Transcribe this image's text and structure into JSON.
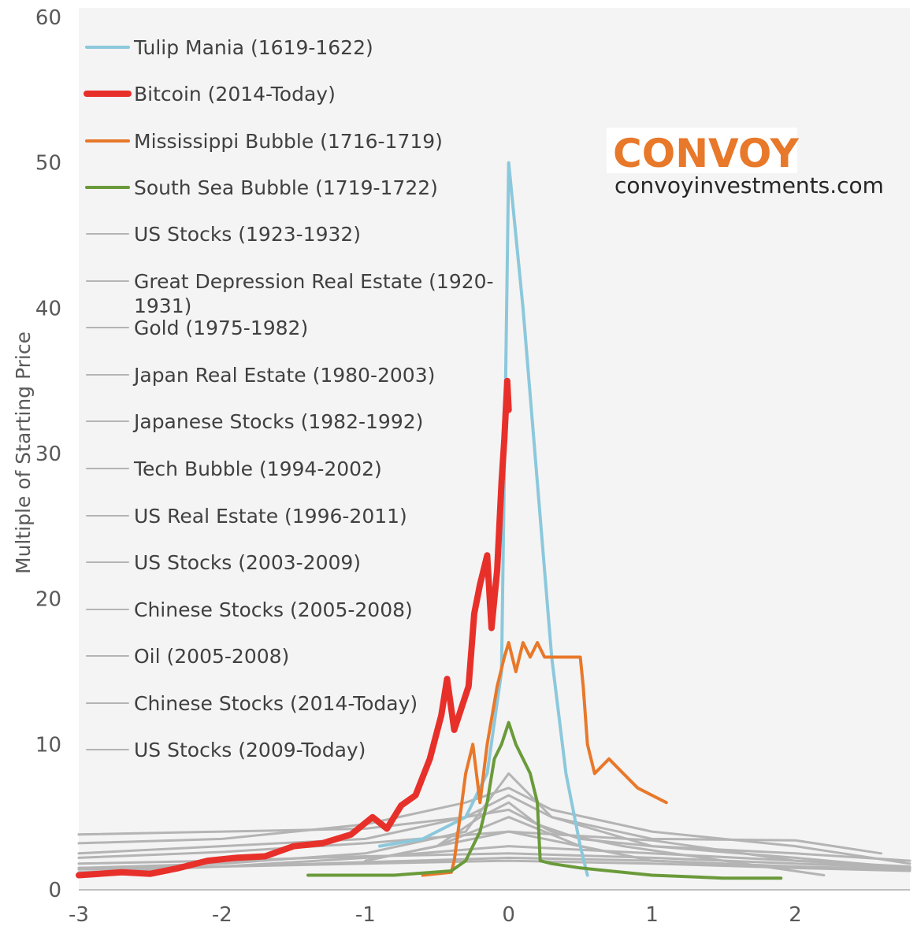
{
  "chart_data": {
    "type": "line",
    "ylabel": "Multiple of Starting Price",
    "xlim": [
      -3,
      2.8
    ],
    "ylim": [
      0,
      60
    ],
    "x_ticks": [
      "-3",
      "-2",
      "-1",
      "0",
      "1",
      "2"
    ],
    "y_ticks": [
      "0",
      "10",
      "20",
      "30",
      "40",
      "50",
      "60"
    ],
    "grid": false,
    "legend_position": "top-left",
    "series": [
      {
        "name": "Tulip Mania (1619-1622)",
        "color": "#8cc8dc",
        "width": 4,
        "x": [
          -0.9,
          -0.6,
          -0.3,
          -0.15,
          -0.05,
          0.0,
          0.1,
          0.2,
          0.3,
          0.4,
          0.5,
          0.55
        ],
        "y": [
          3,
          3.5,
          5,
          8,
          15,
          50,
          40,
          28,
          16,
          8,
          3,
          1
        ]
      },
      {
        "name": "Bitcoin (2014-Today)",
        "color": "#e8302a",
        "width": 8,
        "x": [
          -3,
          -2.7,
          -2.5,
          -2.3,
          -2.1,
          -1.9,
          -1.7,
          -1.5,
          -1.3,
          -1.1,
          -0.95,
          -0.85,
          -0.75,
          -0.65,
          -0.55,
          -0.47,
          -0.43,
          -0.38,
          -0.33,
          -0.28,
          -0.24,
          -0.2,
          -0.15,
          -0.12,
          -0.08,
          -0.05,
          -0.03,
          -0.01,
          0.0
        ],
        "y": [
          1,
          1.2,
          1.1,
          1.5,
          2,
          2.2,
          2.3,
          3,
          3.2,
          3.8,
          5,
          4.2,
          5.8,
          6.5,
          9,
          12,
          14.5,
          11,
          12.5,
          14,
          19,
          21,
          23,
          18,
          22,
          28,
          31,
          35,
          33
        ]
      },
      {
        "name": "Mississippi Bubble (1716-1719)",
        "color": "#e8782a",
        "width": 4,
        "x": [
          -0.6,
          -0.4,
          -0.38,
          -0.3,
          -0.25,
          -0.2,
          -0.15,
          -0.08,
          -0.03,
          0.0,
          0.05,
          0.1,
          0.15,
          0.2,
          0.25,
          0.3,
          0.4,
          0.5,
          0.52,
          0.55,
          0.6,
          0.7,
          0.8,
          0.9,
          1.0,
          1.1
        ],
        "y": [
          1,
          1.2,
          2,
          8,
          10,
          6,
          10,
          14,
          16,
          17,
          15,
          17,
          16,
          17,
          16,
          16,
          16,
          16,
          14,
          10,
          8,
          9,
          8,
          7,
          6.5,
          6
        ]
      },
      {
        "name": "South Sea Bubble (1719-1722)",
        "color": "#6a9a3a",
        "width": 4,
        "x": [
          -1.4,
          -0.8,
          -0.4,
          -0.3,
          -0.25,
          -0.2,
          -0.15,
          -0.1,
          -0.05,
          0.0,
          0.05,
          0.1,
          0.15,
          0.2,
          0.22,
          0.3,
          0.5,
          1.0,
          1.5,
          1.9
        ],
        "y": [
          1,
          1,
          1.3,
          2,
          3,
          4,
          6,
          9,
          10,
          11.5,
          10,
          9,
          8,
          6,
          2,
          1.8,
          1.5,
          1,
          0.8,
          0.8
        ]
      },
      {
        "name": "US Stocks (1923-1932)",
        "color": "#b4b4b4",
        "width": 3,
        "x": [
          -3,
          -2,
          -1,
          -0.3,
          0.0,
          0.3,
          0.8,
          1.5,
          2.2
        ],
        "y": [
          3.8,
          4,
          4.2,
          5,
          5.5,
          4,
          3,
          2,
          1
        ]
      },
      {
        "name": "Great Depression Real Estate (1920-1931)",
        "color": "#b4b4b4",
        "width": 3,
        "x": [
          -3,
          -2,
          -1,
          0.0,
          1,
          2,
          2.8
        ],
        "y": [
          2.2,
          2.6,
          3.2,
          4,
          3.4,
          2,
          1.5
        ]
      },
      {
        "name": "Gold (1975-1982)",
        "color": "#b4b4b4",
        "width": 3,
        "x": [
          -3,
          -2,
          -1,
          -0.3,
          0.0,
          0.3,
          1,
          2,
          2.8
        ],
        "y": [
          1.5,
          1.8,
          2.5,
          4,
          8,
          5,
          3,
          2.2,
          1.5
        ]
      },
      {
        "name": "Japan Real Estate (1980-2003)",
        "color": "#b4b4b4",
        "width": 3,
        "x": [
          -3,
          -2,
          -1,
          0.0,
          1,
          2,
          2.8
        ],
        "y": [
          1.2,
          1.6,
          2.2,
          3,
          2.5,
          2,
          1.6
        ]
      },
      {
        "name": "Japanese Stocks (1982-1992)",
        "color": "#b4b4b4",
        "width": 3,
        "x": [
          -3,
          -2,
          -1,
          -0.3,
          0.0,
          0.3,
          1,
          2,
          2.6
        ],
        "y": [
          2.5,
          3,
          3.5,
          5,
          6.5,
          5,
          3.5,
          3.4,
          2.5
        ]
      },
      {
        "name": "Tech Bubble (1994-2002)",
        "color": "#b4b4b4",
        "width": 3,
        "x": [
          -3,
          -2,
          -1,
          -0.3,
          0.0,
          0.3,
          1,
          2,
          2.8
        ],
        "y": [
          3.2,
          3.5,
          4.5,
          6,
          7,
          5.5,
          4,
          3,
          1.8
        ]
      },
      {
        "name": "US Real Estate (1996-2011)",
        "color": "#b4b4b4",
        "width": 3,
        "x": [
          -3,
          -2,
          -1,
          0.0,
          1,
          2,
          2.8
        ],
        "y": [
          1.4,
          1.6,
          1.9,
          2.2,
          2,
          1.6,
          1.4
        ]
      },
      {
        "name": "US Stocks (2003-2009)",
        "color": "#b4b4b4",
        "width": 3,
        "x": [
          -3,
          -2,
          -1,
          0.0,
          1,
          2,
          2.8
        ],
        "y": [
          1.8,
          2,
          2.3,
          2.5,
          2.2,
          1.8,
          1.5
        ]
      },
      {
        "name": "Chinese Stocks (2005-2008)",
        "color": "#b4b4b4",
        "width": 3,
        "x": [
          -1,
          -0.5,
          -0.2,
          0.0,
          0.2,
          0.5,
          1,
          2,
          2.8
        ],
        "y": [
          2,
          3,
          5,
          6,
          4.5,
          3.5,
          3,
          2.5,
          2
        ]
      },
      {
        "name": "Oil (2005-2008)",
        "color": "#b4b4b4",
        "width": 3,
        "x": [
          -1,
          -0.5,
          0.0,
          0.5,
          1,
          2
        ],
        "y": [
          2,
          3,
          4,
          3,
          2,
          1.5
        ]
      },
      {
        "name": "Chinese Stocks (2014-Today)",
        "color": "#b4b4b4",
        "width": 3,
        "x": [
          -1,
          -0.5,
          0.0,
          0.5,
          1,
          1.5
        ],
        "y": [
          2,
          3,
          5,
          3,
          2,
          1.8
        ]
      },
      {
        "name": "US Stocks (2009-Today)",
        "color": "#b4b4b4",
        "width": 3,
        "x": [
          -3,
          -2,
          -1,
          0.0,
          1,
          2,
          2.8
        ],
        "y": [
          1.5,
          1.6,
          1.8,
          2,
          1.8,
          1.5,
          1.3
        ]
      }
    ]
  },
  "brand": {
    "name": "CONVOY",
    "site": "convoyinvestments.com",
    "color": "#e8782a"
  }
}
